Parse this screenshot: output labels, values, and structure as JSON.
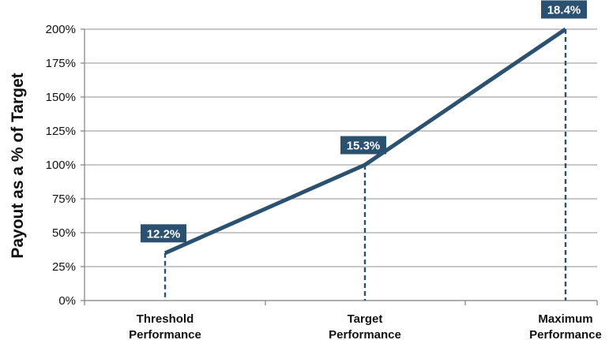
{
  "chart_data": {
    "type": "line",
    "title": "",
    "xlabel": "",
    "ylabel": "Payout as a % of Target",
    "categories": [
      [
        "Threshold",
        "Performance"
      ],
      [
        "Target",
        "Performance"
      ],
      [
        "Maximum",
        "Performance"
      ]
    ],
    "y_ticks": [
      "0%",
      "25%",
      "50%",
      "75%",
      "100%",
      "125%",
      "150%",
      "175%",
      "200%"
    ],
    "ylim": [
      0,
      200
    ],
    "grid": true,
    "legend": "none",
    "series": [
      {
        "values": [
          35,
          100,
          200
        ],
        "data_labels": [
          "12.2%",
          "15.3%",
          "18.4%"
        ]
      }
    ],
    "colors": {
      "line": "#2b5170",
      "label_bg": "#2b5170",
      "label_text": "#ffffff",
      "grid": "#a6a6a6",
      "axis": "#808080"
    }
  }
}
